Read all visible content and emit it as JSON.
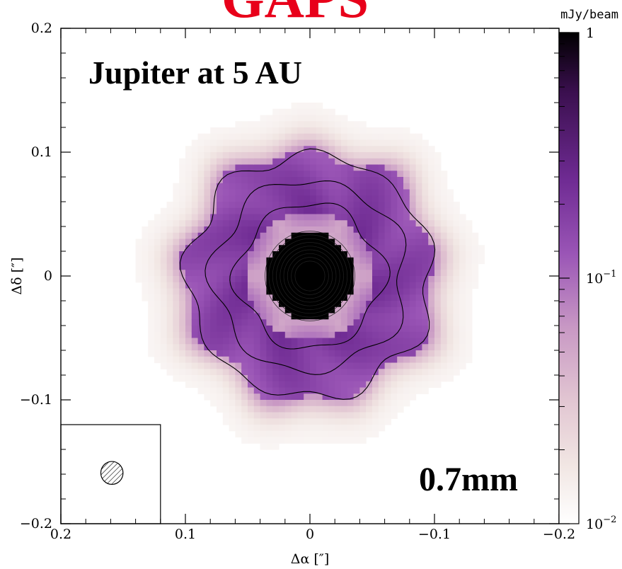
{
  "chart_data": {
    "type": "heatmap",
    "title": "GAPS",
    "annotation_top": "Jupiter at 5 AU",
    "annotation_bottom": "0.7mm",
    "xlabel": "Δα [″]",
    "ylabel": "Δδ [″]",
    "xlim": [
      0.2,
      -0.2
    ],
    "ylim": [
      -0.2,
      0.2
    ],
    "xticks": [
      {
        "value": 0.2,
        "label": "0.2"
      },
      {
        "value": 0.1,
        "label": "0.1"
      },
      {
        "value": 0,
        "label": "0"
      },
      {
        "value": -0.1,
        "label": "−0.1"
      },
      {
        "value": -0.2,
        "label": "−0.2"
      }
    ],
    "yticks": [
      {
        "value": 0.2,
        "label": "0.2"
      },
      {
        "value": 0.1,
        "label": "0.1"
      },
      {
        "value": 0,
        "label": "0"
      },
      {
        "value": -0.1,
        "label": "−0.1"
      },
      {
        "value": -0.2,
        "label": "−0.2"
      }
    ],
    "colorbar": {
      "unit": "mJy/beam",
      "scale": "log",
      "range": [
        0.01,
        1
      ],
      "ticks": [
        {
          "value": 1,
          "label": "1"
        },
        {
          "value": 0.1,
          "label": "10",
          "exp": "−1"
        },
        {
          "value": 0.01,
          "label": "10",
          "exp": "−2"
        }
      ]
    },
    "structure": {
      "central_peak_radius": 0.035,
      "gap_inner": 0.035,
      "gap_outer": 0.052,
      "ring_outer": 0.1,
      "peak_flux": 3.0,
      "ring_flux": 0.25
    },
    "beam": {
      "dx": 0.159,
      "dy": -0.159,
      "major": 0.0115,
      "minor": 0.0105
    },
    "beam_box": {
      "x0": 0.2,
      "x1": 0.12,
      "y0": -0.2,
      "y1": -0.12
    },
    "colors": {
      "title": "#e8001a",
      "peak": "#000000",
      "ring": "#7a3ea0",
      "background": "#ffffff"
    }
  }
}
